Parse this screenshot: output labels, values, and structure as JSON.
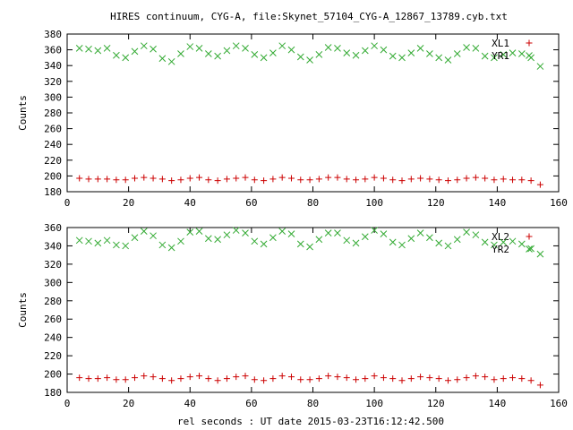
{
  "chart_data": {
    "type": "scatter",
    "title": "HIRES continuum, CYG-A, file:Skynet_57104_CYG-A_12867_13789.cyb.txt",
    "xlabel": "rel seconds : UT date 2015-03-23T16:12:42.500",
    "colors": {
      "xl": "#cc0000",
      "yr": "#33aa33"
    },
    "panels": [
      {
        "id": "top",
        "ylabel": "Counts",
        "xlim": [
          0,
          160
        ],
        "ylim": [
          180,
          380
        ],
        "xticks": [
          0,
          20,
          40,
          60,
          80,
          100,
          120,
          140,
          160
        ],
        "yticks": [
          180,
          200,
          220,
          240,
          260,
          280,
          300,
          320,
          340,
          360,
          380
        ],
        "series": [
          {
            "name": "XL1",
            "marker": "plus",
            "x": [
              4,
              7,
              10,
              13,
              16,
              19,
              22,
              25,
              28,
              31,
              34,
              37,
              40,
              43,
              46,
              49,
              52,
              55,
              58,
              61,
              64,
              67,
              70,
              73,
              76,
              79,
              82,
              85,
              88,
              91,
              94,
              97,
              100,
              103,
              106,
              109,
              112,
              115,
              118,
              121,
              124,
              127,
              130,
              133,
              136,
              139,
              142,
              145,
              148,
              151,
              154
            ],
            "y": [
              197,
              196,
              196,
              196,
              195,
              195,
              197,
              198,
              197,
              196,
              194,
              195,
              197,
              198,
              195,
              194,
              196,
              197,
              198,
              195,
              194,
              196,
              198,
              197,
              195,
              195,
              196,
              198,
              198,
              196,
              195,
              196,
              198,
              197,
              195,
              194,
              196,
              197,
              196,
              195,
              194,
              195,
              197,
              198,
              197,
              195,
              196,
              195,
              195,
              194,
              189
            ]
          },
          {
            "name": "YR1",
            "marker": "cross",
            "x": [
              4,
              7,
              10,
              13,
              16,
              19,
              22,
              25,
              28,
              31,
              34,
              37,
              40,
              43,
              46,
              49,
              52,
              55,
              58,
              61,
              64,
              67,
              70,
              73,
              76,
              79,
              82,
              85,
              88,
              91,
              94,
              97,
              100,
              103,
              106,
              109,
              112,
              115,
              118,
              121,
              124,
              127,
              130,
              133,
              136,
              139,
              142,
              145,
              148,
              151,
              154
            ],
            "y": [
              362,
              361,
              359,
              362,
              353,
              350,
              358,
              365,
              361,
              349,
              345,
              355,
              364,
              362,
              355,
              352,
              359,
              365,
              362,
              354,
              350,
              356,
              365,
              360,
              351,
              347,
              354,
              363,
              362,
              356,
              353,
              359,
              365,
              360,
              352,
              350,
              356,
              362,
              355,
              350,
              347,
              355,
              363,
              362,
              352,
              350,
              354,
              356,
              355,
              350,
              339
            ]
          }
        ]
      },
      {
        "id": "bottom",
        "ylabel": "Counts",
        "xlim": [
          0,
          160
        ],
        "ylim": [
          180,
          360
        ],
        "xticks": [
          0,
          20,
          40,
          60,
          80,
          100,
          120,
          140,
          160
        ],
        "yticks": [
          180,
          200,
          220,
          240,
          260,
          280,
          300,
          320,
          340,
          360
        ],
        "series": [
          {
            "name": "XL2",
            "marker": "plus",
            "x": [
              4,
              7,
              10,
              13,
              16,
              19,
              22,
              25,
              28,
              31,
              34,
              37,
              40,
              43,
              46,
              49,
              52,
              55,
              58,
              61,
              64,
              67,
              70,
              73,
              76,
              79,
              82,
              85,
              88,
              91,
              94,
              97,
              100,
              103,
              106,
              109,
              112,
              115,
              118,
              121,
              124,
              127,
              130,
              133,
              136,
              139,
              142,
              145,
              148,
              151,
              154
            ],
            "y": [
              196,
              195,
              195,
              196,
              194,
              194,
              196,
              198,
              197,
              195,
              193,
              195,
              197,
              198,
              195,
              193,
              195,
              197,
              198,
              194,
              193,
              195,
              198,
              197,
              194,
              194,
              195,
              198,
              197,
              196,
              194,
              195,
              198,
              196,
              195,
              193,
              195,
              197,
              196,
              195,
              193,
              194,
              196,
              198,
              197,
              194,
              195,
              196,
              195,
              193,
              188
            ]
          },
          {
            "name": "YR2",
            "marker": "cross",
            "x": [
              4,
              7,
              10,
              13,
              16,
              19,
              22,
              25,
              28,
              31,
              34,
              37,
              40,
              43,
              46,
              49,
              52,
              55,
              58,
              61,
              64,
              67,
              70,
              73,
              76,
              79,
              82,
              85,
              88,
              91,
              94,
              97,
              100,
              103,
              106,
              109,
              112,
              115,
              118,
              121,
              124,
              127,
              130,
              133,
              136,
              139,
              142,
              145,
              148,
              151,
              154
            ],
            "y": [
              346,
              345,
              343,
              346,
              341,
              340,
              349,
              356,
              351,
              341,
              338,
              345,
              355,
              356,
              348,
              347,
              352,
              357,
              354,
              345,
              342,
              349,
              356,
              353,
              342,
              339,
              347,
              354,
              354,
              346,
              343,
              350,
              357,
              353,
              344,
              341,
              348,
              354,
              349,
              343,
              340,
              347,
              355,
              352,
              344,
              341,
              344,
              345,
              342,
              337,
              331
            ]
          }
        ]
      }
    ]
  }
}
